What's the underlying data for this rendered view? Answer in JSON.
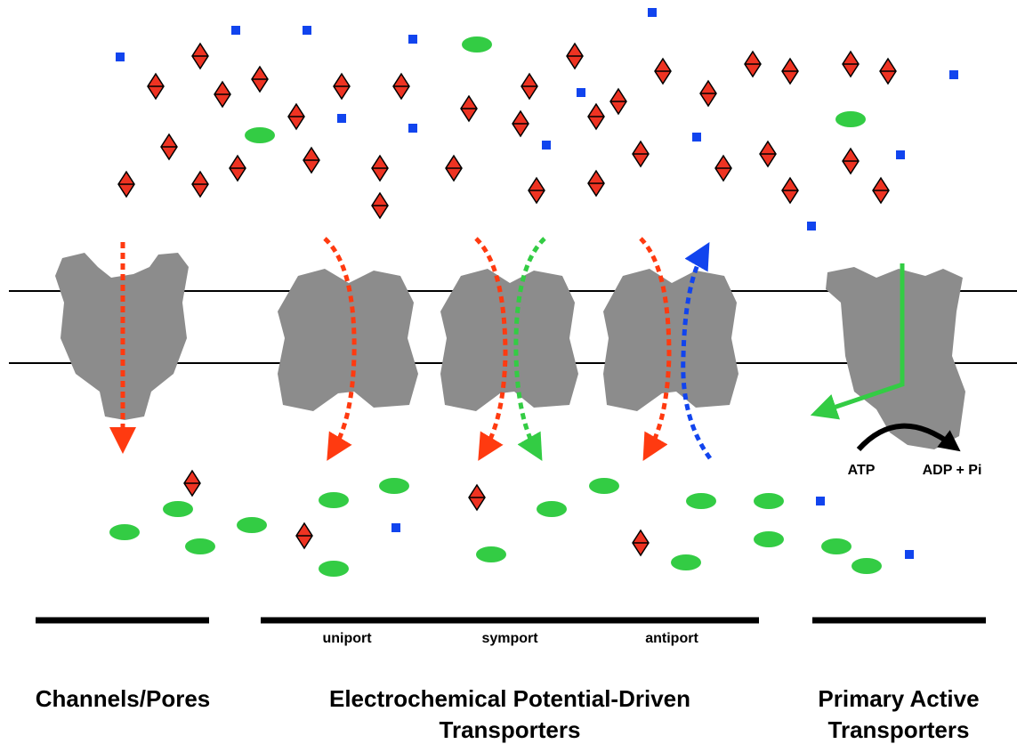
{
  "labels": {
    "uniport": "uniport",
    "symport": "symport",
    "antiport": "antiport",
    "atp": "ATP",
    "adp": "ADP + Pi"
  },
  "categories": [
    "Channels/Pores",
    "Electrochemical Potential-Driven Transporters",
    "Primary Active Transporters"
  ]
}
